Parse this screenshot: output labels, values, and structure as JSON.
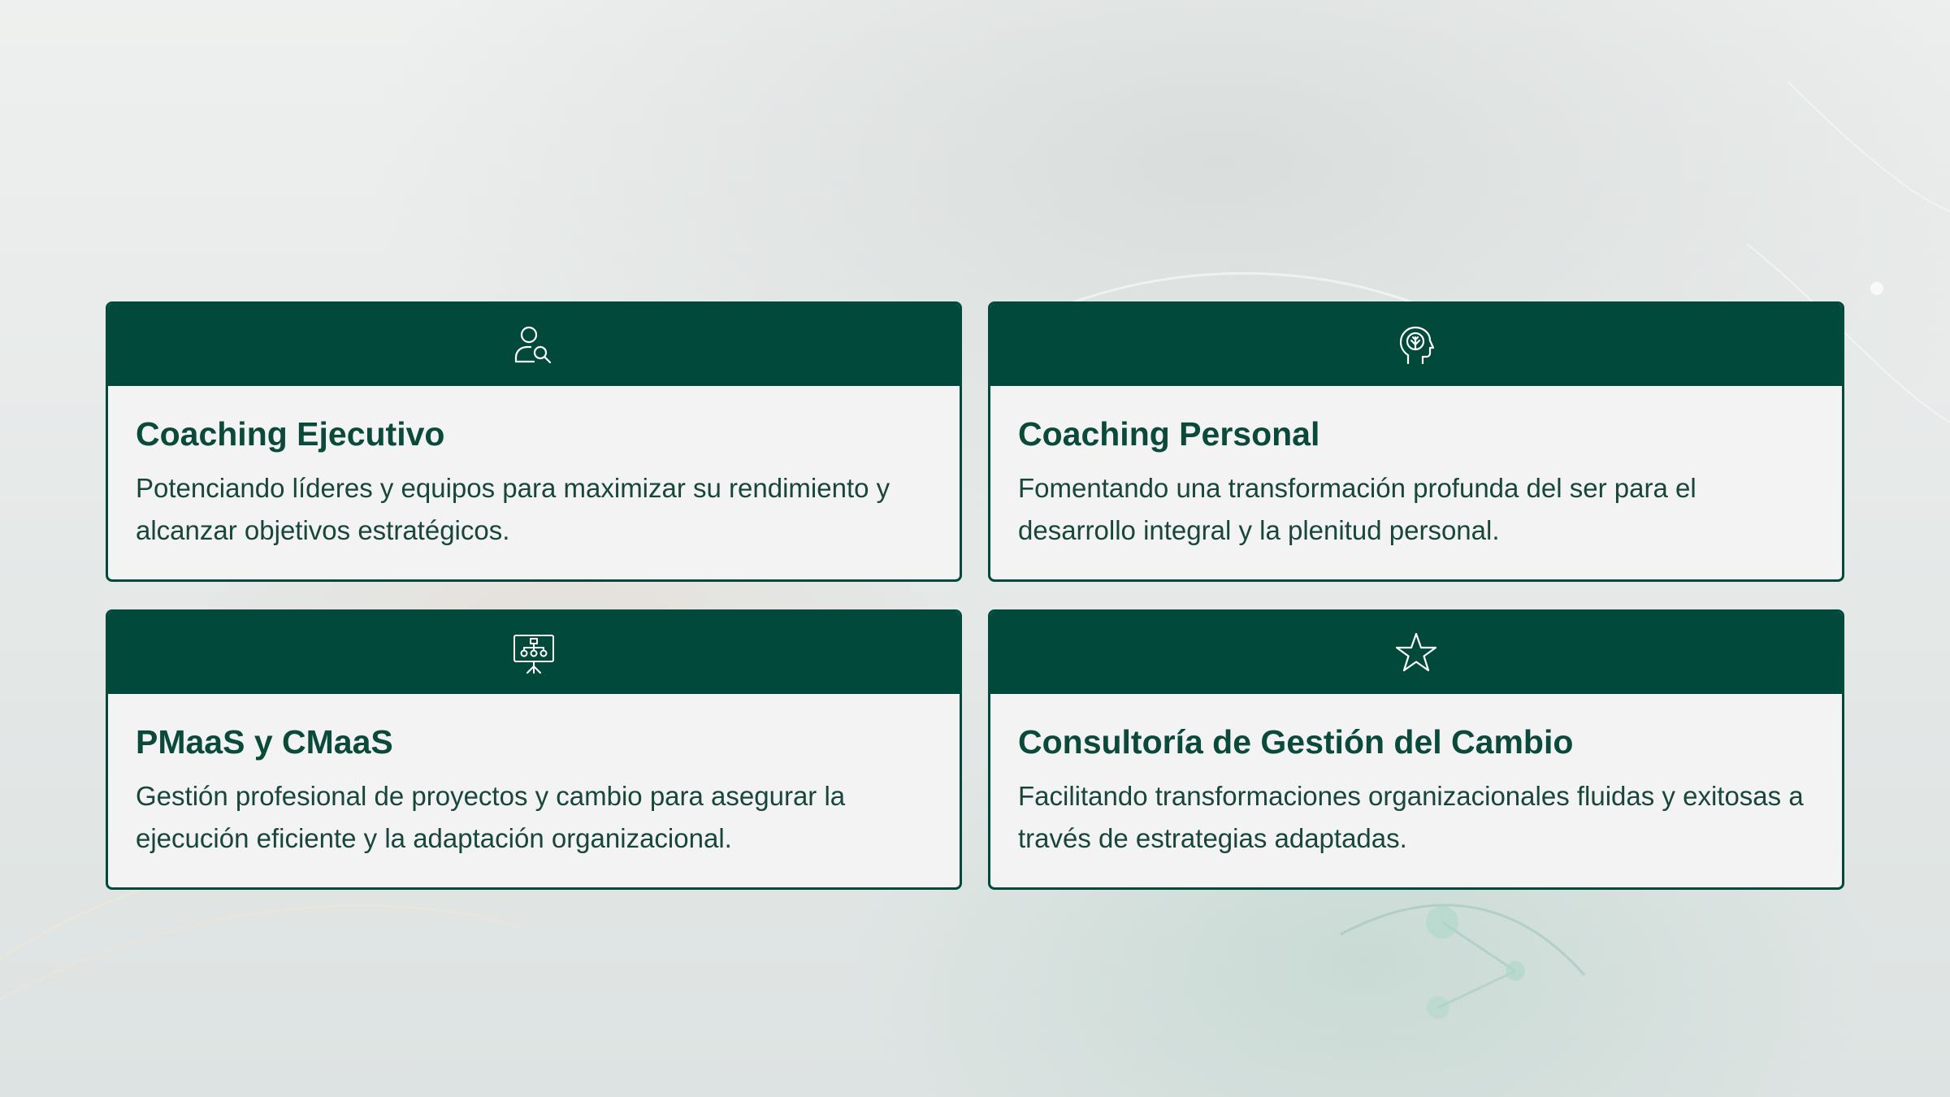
{
  "theme": {
    "brand_green": "#014a3b",
    "card_background": "#f3f3f3",
    "title_color": "#0b4a3b",
    "text_color": "#18463b",
    "icon_color": "#ffffff"
  },
  "services": [
    {
      "icon": "user-search-icon",
      "title": "Coaching Ejecutivo",
      "description": "Potenciando líderes y equipos para maximizar su rendimiento y alcanzar objetivos estratégicos."
    },
    {
      "icon": "head-brain-icon",
      "title": "Coaching Personal",
      "description": "Fomentando una transformación profunda del ser para el desarrollo integral y la plenitud personal."
    },
    {
      "icon": "presentation-board-icon",
      "title": "PMaaS y CMaaS",
      "description": "Gestión profesional de proyectos y cambio para asegurar la ejecución eficiente y la adaptación organizacional."
    },
    {
      "icon": "star-icon",
      "title": "Consultoría de Gestión del Cambio",
      "description": "Facilitando transformaciones organizacionales fluidas y exitosas a través de estrategias adaptadas."
    }
  ]
}
